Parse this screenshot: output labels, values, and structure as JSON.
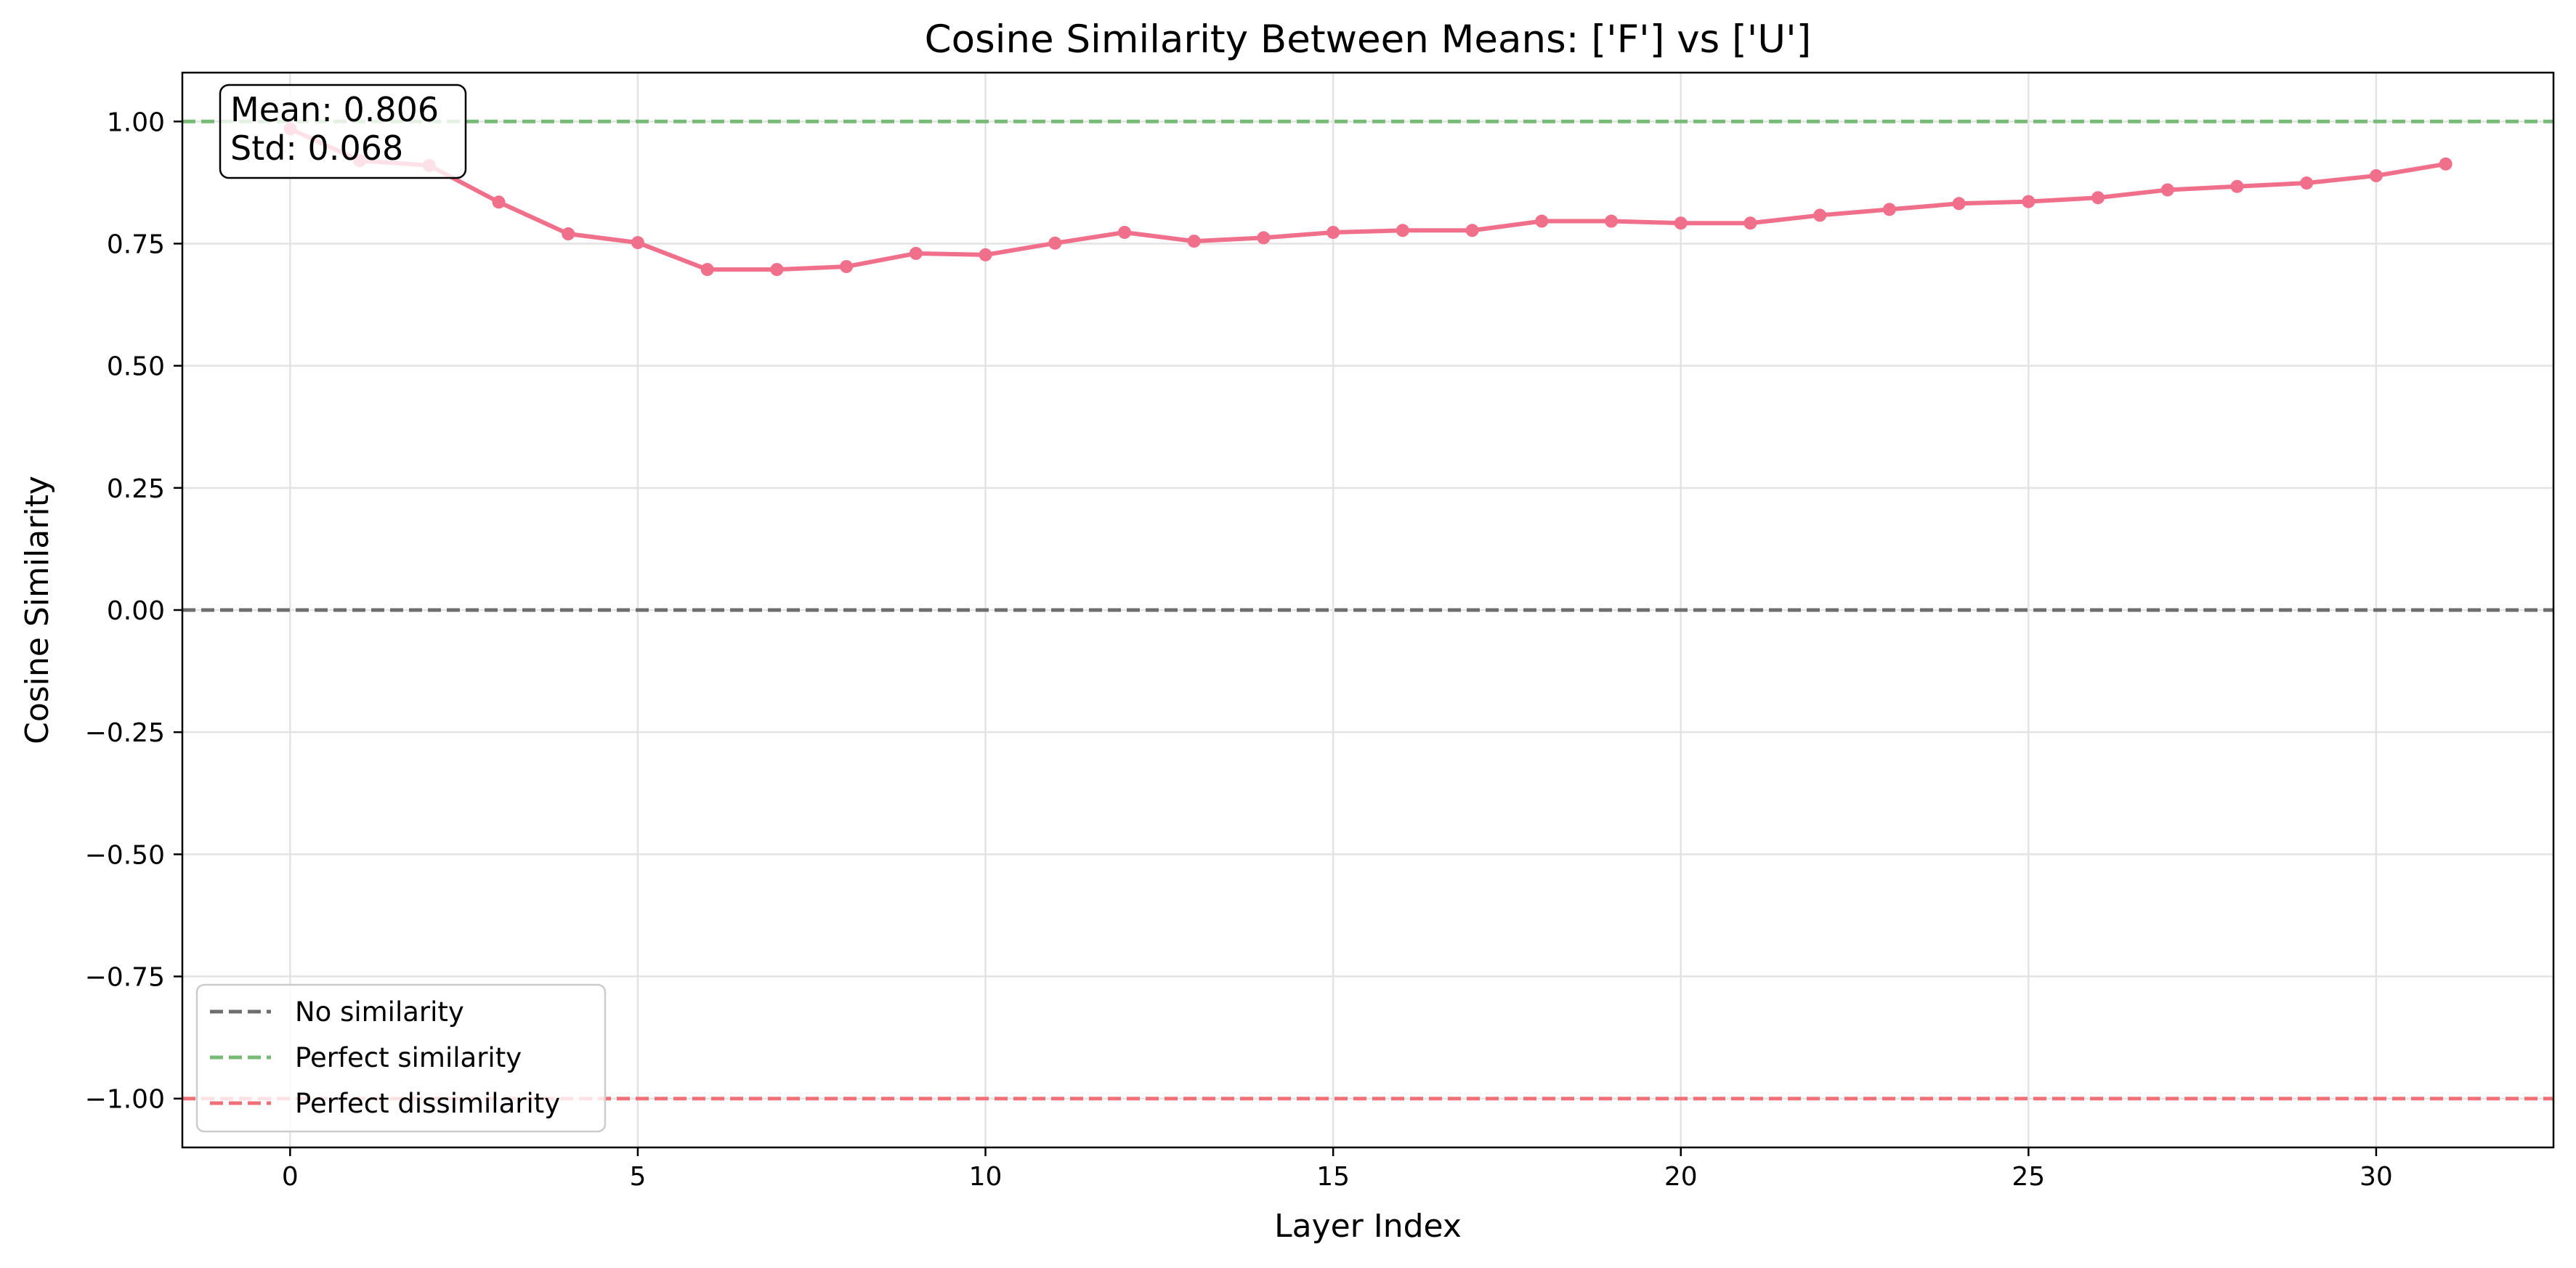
{
  "chart_data": {
    "type": "line",
    "title": "Cosine Similarity Between Means: ['F'] vs ['U']",
    "xlabel": "Layer Index",
    "ylabel": "Cosine Similarity",
    "xlim": [
      -1.55,
      32.55
    ],
    "ylim": [
      -1.1,
      1.1
    ],
    "x_ticks": [
      0,
      5,
      10,
      15,
      20,
      25,
      30
    ],
    "y_ticks": [
      -1.0,
      -0.75,
      -0.5,
      -0.25,
      0.0,
      0.25,
      0.5,
      0.75,
      1.0
    ],
    "x_tick_labels": [
      "0",
      "5",
      "10",
      "15",
      "20",
      "25",
      "30"
    ],
    "y_tick_labels": [
      "−1.00",
      "−0.75",
      "−0.50",
      "−0.25",
      "0.00",
      "0.25",
      "0.50",
      "0.75",
      "1.00"
    ],
    "grid": true,
    "series": [
      {
        "color": "#f0708c",
        "x": [
          0,
          1,
          2,
          3,
          4,
          5,
          6,
          7,
          8,
          9,
          10,
          11,
          12,
          13,
          14,
          15,
          16,
          17,
          18,
          19,
          20,
          21,
          22,
          23,
          24,
          25,
          26,
          27,
          28,
          29,
          30,
          31
        ],
        "values": [
          0.985,
          0.92,
          0.91,
          0.835,
          0.77,
          0.752,
          0.697,
          0.697,
          0.703,
          0.73,
          0.727,
          0.751,
          0.773,
          0.755,
          0.762,
          0.773,
          0.777,
          0.777,
          0.796,
          0.796,
          0.792,
          0.792,
          0.808,
          0.82,
          0.832,
          0.836,
          0.844,
          0.86,
          0.867,
          0.874,
          0.889,
          0.913
        ]
      }
    ],
    "reference_lines": [
      {
        "y": 0.0,
        "color": "#6e6e6e",
        "label": "No similarity"
      },
      {
        "y": 1.0,
        "color": "#77bb77",
        "label": "Perfect similarity"
      },
      {
        "y": -1.0,
        "color": "#f07078",
        "label": "Perfect dissimilarity"
      }
    ],
    "legend": {
      "placement": "bottom-left",
      "entries": [
        "No similarity",
        "Perfect similarity",
        "Perfect dissimilarity"
      ]
    },
    "annotation": {
      "placement": "top-left",
      "line1": "Mean: 0.806",
      "line2": "Std: 0.068"
    }
  }
}
